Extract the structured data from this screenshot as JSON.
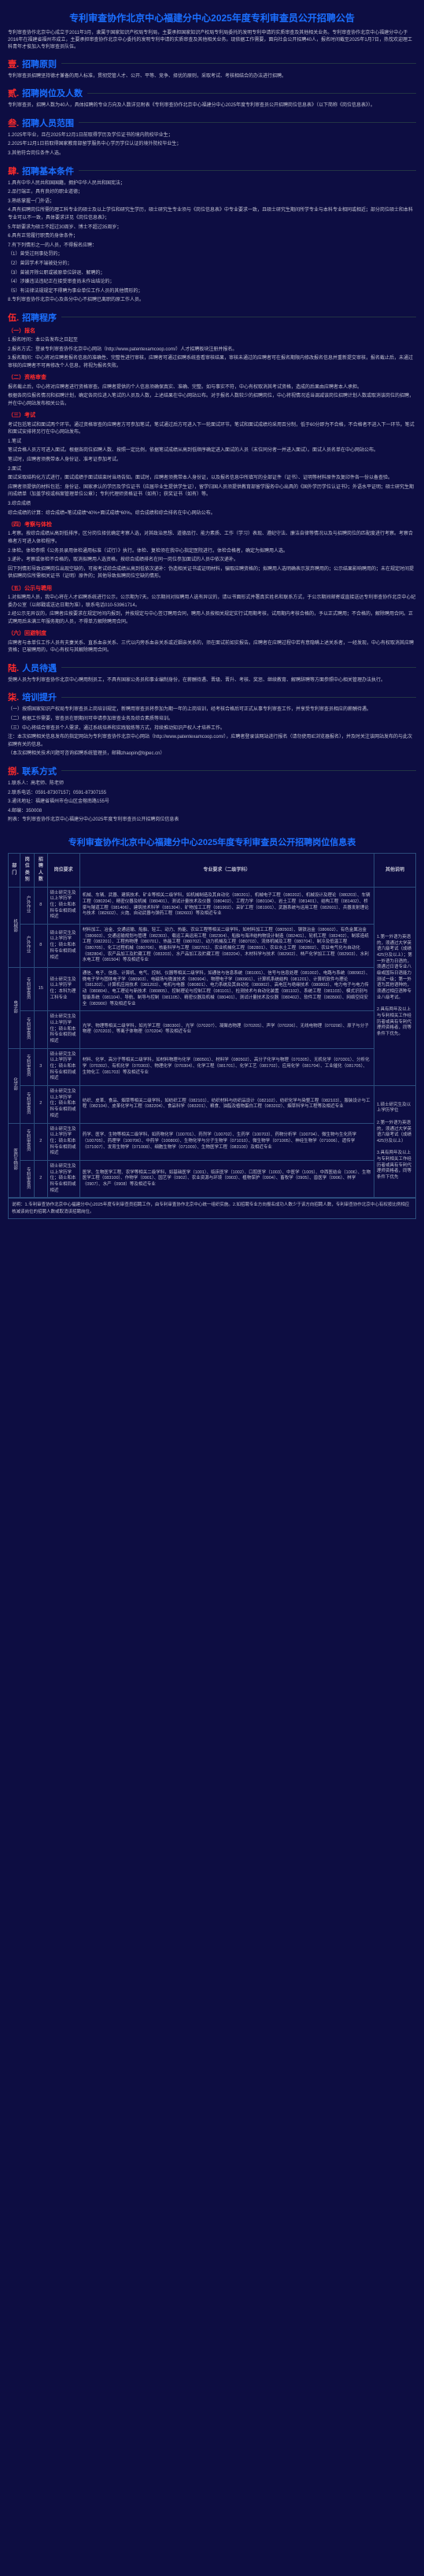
{
  "title": "专利审查协作北京中心福建分中心2025年度专利审查员公开招聘公告",
  "intro": "专利审查协作北京中心成立于2011年3月，隶属于国家知识产权局专利局，主要承担国家知识产权局专利局委托的发明专利申请的实质审查及其他相关业务。专利审查协作北京中心福建分中心于2016年在福建省福州市成立，主要承担审查协作北京中心委托的发明专利申请的实质审查及其他相关业务。现依据工作需要，面向社会公开招聘40人，报名时间截至2025年1月7日，热忱欢迎理工科青年才俊加入专利审查员队伍。",
  "sections": [
    {
      "num": "壹.",
      "title": "招聘原则"
    },
    {
      "num": "贰.",
      "title": "招聘岗位及人数"
    },
    {
      "num": "叁.",
      "title": "招聘人员范围"
    },
    {
      "num": "肆.",
      "title": "招聘基本条件"
    },
    {
      "num": "伍.",
      "title": "招聘程序"
    },
    {
      "num": "陆.",
      "title": "人员待遇"
    },
    {
      "num": "柒.",
      "title": "培训提升"
    },
    {
      "num": "捌.",
      "title": "联系方式"
    }
  ],
  "s1": "专利审查员招聘坚持德才兼备的用人标准，贯彻党管人才、公开、平等、竞争、择优的原则，采取考试、考核相结合的办法进行招聘。",
  "s2": "专利审查员，招聘人数为40人，具体招聘的专业方向及人数详见附表《专利审查协作北京中心福建分中心2025年度专利审查员公开招聘岗位信息表》（以下简称《岗位信息表》）。",
  "s3": "1.2025年毕业，且在2025年12月1日前取得学历及学位证书的境内院校毕业生；\n2.2025年12月1日前取得国家教育部留学服务中心学历学位认证的境外院校毕业生；\n3.其他符合岗位条件人选。",
  "s4": {
    "list": [
      "1.具有中华人民共和国国籍，拥护中华人民共和国宪法；",
      "2.品行端正，具有良好的职业道德；",
      "3.熟练掌握一门外语；",
      "4.具有招聘岗位所需的理工科专业的硕士及以上学位和研究生学历，硕士研究生专业须与《岗位信息表》中专业要求一致，且硕士研究生期间所学专业与本科专业相同或相近；部分岗位硕士和本科专业可以不一致，具体要求详见《岗位信息表》；",
      "5.年龄要求为硕士不超过30周岁、博士不超过35周岁；",
      "6.具有正常履行职责的身体条件；",
      "7.有下列情形之一的人员，不得报名应聘：",
      "（1）曾受过刑事处罚的；",
      "（2）曾因学术不端被处分的；",
      "（3）曾被开除公职或被原单位辞退、解聘的；",
      "（4）涉嫌违法违纪正在接受审查尚未作出结论的；",
      "（5）有法律法规规定不得聘为事业单位工作人员的其他情形的；",
      "8.专利审查协作北京中心及各分中心不招聘已离职的原工作人员。"
    ]
  },
  "s5": {
    "steps": [
      {
        "h": "（一）报名",
        "paras": [
          "1.报名时间：本公告发布之日起至",
          "2.报名方式：登录专利审查协作北京中心网站（http://www.patentexamcoop.com/）人才招聘板块注册并报名。",
          "3.报名期间：中心将对应聘者报名信息的准确性、完整性进行审核，应聘者可通过招聘系统查看审核结果，审核未通过的应聘者可在报名期限内修改报名信息并重新提交审核，报名截止后，未通过审核的应聘者不可再修改个人信息，将视为报名失败。"
        ]
      },
      {
        "h": "（二）资格审查",
        "paras": [
          "报名截止后，中心将对应聘者进行资格审查。应聘者提供的个人信息须确保真实、准确、完整。如与事实不符，中心有权取消其考试资格，造成的后果由应聘者本人承担。",
          "根据各岗位报名情况和招聘计划，确定各岗位进入笔试的人员及人数，上述结果在中心网站公布。对于报名人数较少的招聘岗位，中心将视情况适当调减该岗位招聘计划人数或取消该岗位的招聘，并在中心网站发布相关公告。"
        ]
      },
      {
        "h": "（三）考试",
        "paras": [
          "考试包括笔试和面试两个环节。通过资格审查的应聘者方可参加笔试，笔试通过后方可进入下一轮面试环节。笔试和面试成绩均采用百分制，低于60分即为不合格，不合格者不进入下一环节。笔试和面试安排将另行在中心网站发布。",
          "1.笔试",
          "笔试合格人员方可进入面试。根据各岗位招聘人数、按照一定比例，依据笔试成绩从高到低顺序确定进入面试的人员（末位同分者一并进入面试）。面试人员名单在中心网站公布。",
          "笔试时，应聘者须携带本人身份证、准考证参加考试。",
          "2.面试",
          "面试采取结构化方式进行，面试成绩于面试结束时当场告知。面试时，应聘者须携带本人身份证，以及报名信息中所填写的全部证件（证书）、证明等材料原件及复印件各一份以备查验。",
          "应聘者须提供的材料包括：身份证、国家承认的学历及学位证书（应届毕业生提供学生证），留学归国人员须提供教育部留学服务中心出具的《国外学历学位认证书》；外语水平证明；硕士研究生期间成绩单（加盖学校或档案管理单位公章）；专利代理师资格证书（如有）；获奖证书（如有）等。",
          "3.综合成绩",
          "综合成绩的计算：综合成绩=笔试成绩*40%+面试成绩*60%。综合成绩和综合排名在中心网站公布。"
        ]
      },
      {
        "h": "（四）考察与体检",
        "paras": [
          "1.考察。按综合成绩从高到低排序，区分岗位择优确定考察人选，对其政治思想、道德品行、能力素质、工作（学习）表现、遵纪守法、廉洁自律等情况以及与招聘岗位的匹配度进行考察。考察合格者方可进入体检程序。",
          "2.体检。体检参照《公务员录用体检通用标准（试行）》执行。体检、复检须在我中心指定医院进行。体检合格者，确定为拟聘用人选。",
          "3.递补。考察或体检不合格的，取消拟聘用人选资格，按综合成绩排名在同一岗位参加面试的人员中依次递补。",
          "因下列情形导致招聘岗位出现空缺的，可按考试综合成绩从高到低依次递补：伪造相关证书或证明材料，骗取应聘资格的；拟聘用人选明确表示放弃聘用的；公示结果影响聘用的；未在规定时间提供招聘岗位所需相关证书（证明）原件的；其他导致拟聘岗位空缺的情形。"
        ]
      },
      {
        "h": "（五）公示与聘用",
        "paras": [
          "1.对拟聘用人员，我中心将在人才招聘系统进行公示，公示期为7天。公示期间对拟聘用人选有异议的，请以书面形式并署真实姓名和联系方式，于公示期间邮寄或直接送达专利审查协作北京中心纪委办公室（以邮戳或送达日期为准），联系电话010-53961714。",
          "2.经公示无异议的，应聘者应按要求在规定时间内报到，并按规定与中心签订聘用合同，聘用人员按相关规定实行试用期考核，试用期内考核合格的，予以正式聘用；不合格的，解除聘用合同。正式聘用后未满三年服务期的人员，不得单方解除聘用合同。"
        ]
      },
      {
        "h": "（六）回避制度",
        "paras": [
          "应聘者与本单位工作人员有夫妻关系、直系血亲关系、三代以内旁系血亲关系或近姻亲关系的，须在面试前如实报告。应聘者在应聘过程中若有意隐瞒上述关系者，一经发现，中心有权取消其应聘资格；已被聘用的，中心有权与其解除聘用合同。"
        ]
      }
    ]
  },
  "s6": "受聘人员为专利审查协作北京中心聘用制员工，不具有国家公务员和事业编制身份，在薪酬待遇、晋级、晋升、考核、奖惩、继续教育、解聘辞聘等方面参照中心相关管理办法执行。",
  "s7": [
    "（一）按照国家知识产权局专利审查员上岗培训规定，新聘用审查员将参加为期一年的上岗培训，经考核合格后可正式从事专利审查工作，并享受专利审查员相应的薪酬待遇。",
    "（二）根据工作需要，审查员在职期间可申请参加审查业务及综合素质等培训。",
    "（三）中心将结合审查员个人需求，通过系统培养和实践锻炼等方式，持续推动知识产权人才培养工作。",
    "注：本次招聘相关信息发布的指定网站为专利审查协作北京中心网站（http://www.patentexamcoop.com/），应聘者登录该网站进行报名（请勿使用IE浏览器报名），并及时关注该网站发布的与此次招聘有关的信息。",
    "（本次招聘相关技术问题可咨询招聘系统管理员，邮箱zhaopin@bjpec.cn）"
  ],
  "s8": [
    "1.联系人：高老师、陈老师",
    "2.联系电话：0591-87307157；0591-87307155",
    "3.通讯地址：福建省福州市仓山区金榕南路155号",
    "4.邮编：350008",
    "附表：专利审查协作北京中心福建分中心2025年度专利审查员公开招聘岗位信息表"
  ],
  "tableTitle": "专利审查协作北京中心福建分中心2025年度专利审查员公开招聘岗位信息表",
  "columns": [
    "部门",
    "岗位类别",
    "招聘人数",
    "岗位要求",
    "专业要求（二级学科）",
    "其他说明"
  ],
  "rows": [
    {
      "dept": "机械部",
      "cat": "户外作业",
      "num": "8",
      "req": "硕士研究生及以上学历学位；硕士和本科专业相同或相近",
      "spec": "机械、车辆、武器、建筑技术、矿业等相关二级学科，如机械制造及其自动化（080201）、机械电子工程（080202）、机械设计及理论（080203）、车辆工程（080204）、精密仪器及机械（080401）、测试计量技术及仪器（080402）、工程力学（080104）、岩土工程（081401）、结构工程（081402）、桥梁与隧道工程（081406）、建筑技术科学（081304）、矿物加工工程（081902）、采矿工程（081901）、武器系统与运用工程（082601）、兵器发射理论与技术（082602）、火炮、自动武器与弹药工程（082603）等及相近专业"
    },
    {
      "dept": "机械部",
      "cat": "户外作业",
      "num": "8",
      "req": "硕士研究生及以上学历学位；硕士和本科专业相同或相近",
      "spec": "材料加工、冶金、交通运输、船舶、轻工、动力、热能、农业工程等相关二级学科，如材料加工工程（080503）、钢铁冶金（080602）、有色金属冶金（080603）、交通运输规划与管理（082303）、载运工具运用工程（082304）、船舶与海洋结构物设计制造（082401）、轮机工程（082402）、制浆造纸工程（082201）、工程热物理（080701）、热能工程（080702）、动力机械及工程（080703）、流体机械及工程（080704）、制冷及低温工程（080705）、化工过程机械（080706）、核能科学与工程（082701）、农业机械化工程（082801）、农业水土工程（082802）、农业电气化与自动化（082804）、农产品加工及贮藏工程（083203）、水产品加工及贮藏工程（083204）、木材科学与技术（082902）、林产化学加工工程（082903）、水利水电工程（081504）等及相近专业"
    },
    {
      "dept": "电学部",
      "cat": "专利审查员",
      "num": "15",
      "req": "硕士研究生及以上学历学位；本科为理工科专业",
      "spec": "通信、电子、信息、计算机、电气、控制、仪器等相关二级学科，如通信与信息系统（081001）、信号与信息处理（081002）、电路与系统（080902）、微电子学与固体电子学（080903）、电磁场与微波技术（080904）、物理电子学（080901）、计算机系统结构（081201）、计算机软件与理论（081202）、计算机应用技术（081203）、电机与电器（080801）、电力系统及其自动化（080802）、高电压与绝缘技术（080803）、电力电子与电力传动（080804）、电工理论与新技术（080805）、控制理论与控制工程（081101）、检测技术与自动化装置（081102）、系统工程（081103）、模式识别与智能系统（081104）、导航、制导与控制（081105）、精密仪器及机械（080401）、测试计量技术及仪器（080402）、软件工程（083500）、网络空间安全（083900）等及相近专业"
    },
    {
      "dept": "电学部",
      "cat": "专利审查员",
      "num": "",
      "req": "硕士研究生及以上学历学位；硕士和本科专业相同或相近",
      "spec": "光学、物理等相关二级学科，如光学工程（080300）、光学（070207）、凝聚态物理（070205）、声学（070206）、无线电物理（070208）、原子与分子物理（070203）、等离子体物理（070204）等及相近专业"
    },
    {
      "dept": "化学部",
      "cat": "专利审查员",
      "num": "3",
      "req": "硕士研究生及以上学历学位；硕士和本科专业相同或相近",
      "spec": "材料、化学、高分子等相关二级学科，如材料物理与化学（080501）、材料学（080502）、高分子化学与物理（070305）、无机化学（070301）、分析化学（070302）、有机化学（070303）、物理化学（070304）、化学工程（081701）、化学工艺（081702）、应用化学（081704）、工业催化（081705）、生物化工（081703）等及相近专业"
    },
    {
      "dept": "化学部",
      "cat": "专利审查员",
      "num": "2",
      "req": "硕士研究生及以上学历学位；硕士和本科专业相同或相近",
      "spec": "纺织、皮革、食品、烟草等相关二级学科，如纺织工程（082101）、纺织材料与纺织品设计（082102）、纺织化学与染整工程（082103）、服装设计与工程（082104）、皮革化学与工程（082204）、食品科学（083201）、粮食、油脂及植物蛋白工程（083202）、烟草科学与工程等及相近专业"
    },
    {
      "dept": "医药生物部",
      "cat": "专利审查员",
      "num": "2",
      "req": "硕士研究生及以上学历学位；硕士和本科专业相同或相近",
      "spec": "药学、医学、生物等相关二级学科，如药物化学（100701）、药剂学（100702）、生药学（100703）、药物分析学（100704）、微生物与生化药学（100705）、药理学（100706）、中药学（100800）、生物化学与分子生物学（071010）、微生物学（071005）、神经生物学（071006）、遗传学（071007）、发育生物学（071008）、细胞生物学（071009）、生物医学工程（083100）及相近专业"
    },
    {
      "dept": "医药生物部",
      "cat": "专利审查员",
      "num": "2",
      "req": "硕士研究生及以上学历学位；硕士和本科专业相同或相近",
      "spec": "医学、生物医学工程、农学等相关二级学科，如基础医学（1001）、临床医学（1002）、口腔医学（1003）、中医学（1005）、中西医结合（1006）、生物医学工程（083100）、作物学（0901）、园艺学（0902）、农业资源与环境（0903）、植物保护（0904）、畜牧学（0905）、兽医学（0906）、林学（0907）、水产（0908）等及相近专业"
    }
  ],
  "other": {
    "top": "1.第一外语为英语的，须通过大学英语六级考试（成绩425分及以上）；第一外语为日语的，须通过日语专业八级或国际日语能力测试一级；第一外语为其他语种的，须通过相应语种专业八级考试。\n2.具有两年及以上与专利相关工作经历者或具有专利代理师资格者，同等条件下优先。",
    "bottom": "1.硕士研究生及以上学历学位\n2.第一外语为英语的，须通过大学英语六级考试（成绩425分及以上）\n3.具有两年及以上与专利相关工作经历者或具有专利代理师资格者，同等条件下优先"
  },
  "note": "说明：1.专利审查协作北京中心福建分中心2025年度专利审查员招聘工作，由专利审査协作北京中心统一组织实施。2.如招聘专业方向报名成功人数少于该方向招聘人数，专利审查协作北京中心有权按比例相应核减该岗位的招聘人数或取消该招聘岗位。"
}
